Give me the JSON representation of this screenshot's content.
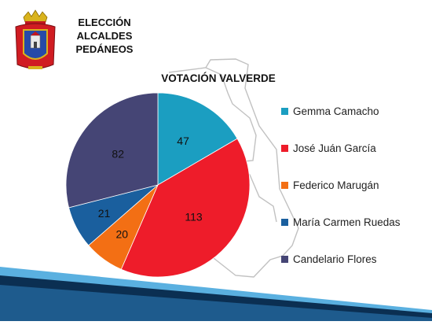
{
  "header": {
    "title_lines": [
      "ELECCIÓN",
      "ALCALDES",
      "PEDÁNEOS"
    ],
    "logo": "coat-of-arms-logo"
  },
  "colors": {
    "gemma": "#1b9ec1",
    "jose": "#ee1c2a",
    "federico": "#f36f14",
    "maria": "#1a5f9e",
    "candelario": "#454575",
    "band_dark": "#0b2f52",
    "band_light": "#4aa0d6"
  },
  "chart_data": {
    "type": "pie",
    "title": "VOTACIÓN VALVERDE",
    "categories": [
      "Gemma Camacho",
      "José Juán García",
      "Federico Marugán",
      "María Carmen Ruedas",
      "Candelario Flores"
    ],
    "values": [
      47,
      113,
      20,
      21,
      82
    ],
    "start": "12 o'clock, clockwise",
    "legend_position": "right",
    "data_labels": true
  }
}
